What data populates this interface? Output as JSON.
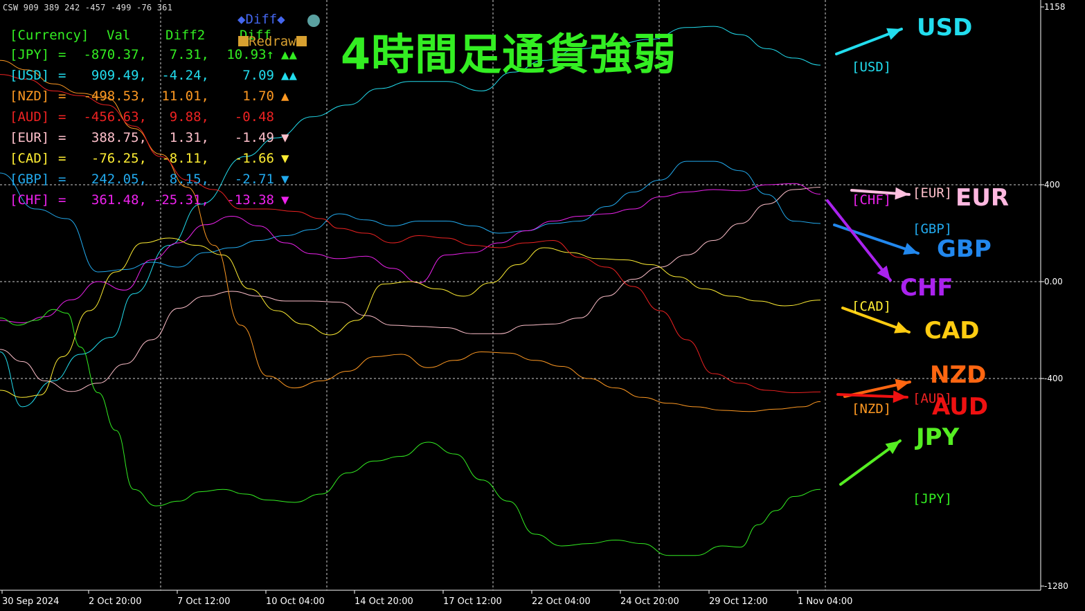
{
  "header": {
    "indicator_line": "CSW 909 389 242 -457 -499 -76 361"
  },
  "panel": {
    "col_headers": [
      "[Currency]",
      "Val",
      "Diff2",
      "Diff"
    ],
    "diff_button": "◆Diff◆",
    "redraw_button": "Redraw",
    "rows": [
      {
        "label": "[JPY]",
        "eq": "=",
        "val": "-870.37,",
        "diff2": "7.31,",
        "diff": "10.93↑",
        "arrows": "▲▲",
        "color": "#33ee22"
      },
      {
        "label": "[USD]",
        "eq": "=",
        "val": "909.49,",
        "diff2": "-4.24,",
        "diff": "7.09",
        "arrows": "▲▲",
        "color": "#22ddee"
      },
      {
        "label": "[NZD]",
        "eq": "=",
        "val": "-498.53,",
        "diff2": "11.01,",
        "diff": "1.70",
        "arrows": "▲",
        "color": "#ff9922"
      },
      {
        "label": "[AUD]",
        "eq": "=",
        "val": "-456.63,",
        "diff2": "9.88,",
        "diff": "-0.48",
        "arrows": "",
        "color": "#ee2222"
      },
      {
        "label": "[EUR]",
        "eq": "=",
        "val": "388.75,",
        "diff2": "1.31,",
        "diff": "-1.49",
        "arrows": "▼",
        "color": "#ffc0cb"
      },
      {
        "label": "[CAD]",
        "eq": "=",
        "val": "-76.25,",
        "diff2": "-8.11,",
        "diff": "-1.66",
        "arrows": "▼",
        "color": "#ffee33"
      },
      {
        "label": "[GBP]",
        "eq": "=",
        "val": "242.05,",
        "diff2": "8.15,",
        "diff": "-2.71",
        "arrows": "▼",
        "color": "#22aaee"
      },
      {
        "label": "[CHF]",
        "eq": "=",
        "val": "361.48,",
        "diff2": "-25.31,",
        "diff": "-13.38",
        "arrows": "▼",
        "color": "#ee22ee"
      }
    ]
  },
  "title": "4時間足通貨強弱",
  "series_labels": [
    {
      "tag": "[USD]",
      "color": "#22ddee"
    },
    {
      "tag": "[EUR]",
      "color": "#ffc0cb"
    },
    {
      "tag": "[CHF]",
      "color": "#ee22ee"
    },
    {
      "tag": "[GBP]",
      "color": "#22aaee"
    },
    {
      "tag": "[CAD]",
      "color": "#ffee33"
    },
    {
      "tag": "[NZD]",
      "color": "#ff9922"
    },
    {
      "tag": "[AUD]",
      "color": "#ee2222"
    },
    {
      "tag": "[JPY]",
      "color": "#33ee22"
    }
  ],
  "annotations": [
    {
      "text": "USD",
      "color": "#22ddee"
    },
    {
      "text": "EUR",
      "color": "#ffb8e0"
    },
    {
      "text": "GBP",
      "color": "#2288ee"
    },
    {
      "text": "CHF",
      "color": "#aa22ee"
    },
    {
      "text": "CAD",
      "color": "#ffcc11"
    },
    {
      "text": "NZD",
      "color": "#ff6611"
    },
    {
      "text": "AUD",
      "color": "#ee1111"
    },
    {
      "text": "JPY",
      "color": "#55ee22"
    }
  ],
  "chart_data": {
    "type": "line",
    "y_axis": {
      "ticks": [
        1158,
        400,
        0,
        -400,
        -1280
      ],
      "tick_labels": [
        "1158",
        "400",
        "0.00",
        "-400",
        "-1280"
      ],
      "ylim": [
        -1280,
        1158
      ]
    },
    "x_tick_labels": [
      "30 Sep 2024",
      "2 Oct 20:00",
      "7 Oct 12:00",
      "10 Oct 04:00",
      "14 Oct 20:00",
      "17 Oct 12:00",
      "22 Oct 04:00",
      "24 Oct 20:00",
      "29 Oct 12:00",
      "1 Nov 04:00"
    ],
    "x_range": [
      0,
      184
    ],
    "grid": true,
    "series": [
      {
        "name": "USD",
        "color": "#22ddee",
        "x": [
          0,
          5,
          12,
          18,
          25,
          30,
          38,
          45,
          55,
          62,
          70,
          78,
          85,
          92,
          100,
          108,
          115,
          122,
          130,
          138,
          146,
          154,
          160,
          166,
          172,
          178,
          184
        ],
        "values": [
          -290,
          -520,
          -410,
          -300,
          -230,
          -50,
          150,
          320,
          520,
          600,
          690,
          740,
          810,
          840,
          840,
          800,
          880,
          930,
          980,
          1000,
          1020,
          1070,
          1075,
          1040,
          980,
          940,
          910
        ]
      },
      {
        "name": "EUR",
        "color": "#ffc0cb",
        "x": [
          0,
          5,
          10,
          16,
          22,
          28,
          34,
          40,
          46,
          52,
          58,
          64,
          70,
          76,
          82,
          88,
          94,
          100,
          106,
          112,
          118,
          124,
          130,
          136,
          142,
          148,
          154,
          160,
          166,
          172,
          178,
          184
        ],
        "values": [
          -280,
          -330,
          -410,
          -455,
          -420,
          -340,
          -240,
          -110,
          -60,
          -40,
          -60,
          -80,
          -80,
          -85,
          -140,
          -180,
          -185,
          -190,
          -215,
          -215,
          -180,
          -175,
          -150,
          -60,
          10,
          60,
          110,
          170,
          240,
          320,
          380,
          390
        ]
      },
      {
        "name": "GBP",
        "color": "#22aaee",
        "x": [
          0,
          8,
          15,
          22,
          28,
          34,
          40,
          46,
          52,
          58,
          64,
          70,
          76,
          82,
          88,
          94,
          100,
          106,
          112,
          118,
          124,
          130,
          136,
          142,
          148,
          154,
          160,
          166,
          172,
          178,
          184
        ],
        "values": [
          450,
          300,
          260,
          40,
          50,
          80,
          60,
          120,
          140,
          170,
          190,
          215,
          280,
          255,
          230,
          250,
          250,
          230,
          200,
          210,
          240,
          250,
          310,
          370,
          420,
          500,
          500,
          460,
          360,
          250,
          240
        ]
      },
      {
        "name": "CHF",
        "color": "#ee22ee",
        "x": [
          0,
          5,
          10,
          16,
          22,
          28,
          34,
          40,
          46,
          52,
          58,
          64,
          70,
          76,
          82,
          88,
          94,
          100,
          106,
          112,
          118,
          124,
          130,
          136,
          142,
          148,
          154,
          160,
          166,
          172,
          178,
          184
        ],
        "values": [
          -160,
          -170,
          -145,
          -75,
          0,
          -35,
          90,
          160,
          235,
          270,
          230,
          160,
          115,
          95,
          105,
          55,
          -5,
          110,
          120,
          160,
          210,
          250,
          270,
          280,
          300,
          350,
          370,
          380,
          375,
          400,
          405,
          361
        ]
      },
      {
        "name": "CAD",
        "color": "#ffee33",
        "x": [
          0,
          5,
          9,
          14,
          20,
          26,
          32,
          38,
          44,
          50,
          56,
          62,
          68,
          74,
          80,
          86,
          92,
          98,
          104,
          110,
          116,
          122,
          128,
          134,
          140,
          146,
          152,
          158,
          164,
          170,
          176,
          184
        ],
        "values": [
          -450,
          -480,
          -470,
          -310,
          -120,
          40,
          160,
          180,
          150,
          110,
          -30,
          -120,
          -175,
          -220,
          -160,
          -10,
          0,
          -30,
          -60,
          -5,
          70,
          140,
          120,
          95,
          90,
          70,
          20,
          -30,
          -60,
          -80,
          -100,
          -76
        ]
      },
      {
        "name": "NZD",
        "color": "#ff9922",
        "x": [
          0,
          6,
          12,
          18,
          24,
          30,
          36,
          42,
          48,
          54,
          60,
          66,
          72,
          78,
          84,
          90,
          96,
          102,
          108,
          114,
          120,
          126,
          132,
          138,
          144,
          150,
          156,
          162,
          168,
          174,
          180,
          184
        ],
        "values": [
          930,
          890,
          830,
          790,
          770,
          640,
          530,
          390,
          150,
          -180,
          -390,
          -440,
          -410,
          -370,
          -310,
          -300,
          -355,
          -325,
          -290,
          -295,
          -325,
          -350,
          -400,
          -440,
          -480,
          -505,
          -520,
          -535,
          -540,
          -530,
          -520,
          -498
        ]
      },
      {
        "name": "AUD",
        "color": "#ee2222",
        "x": [
          0,
          6,
          12,
          18,
          24,
          30,
          36,
          42,
          48,
          54,
          60,
          66,
          72,
          76,
          82,
          88,
          94,
          100,
          106,
          112,
          118,
          124,
          130,
          136,
          142,
          148,
          154,
          160,
          166,
          172,
          178,
          184
        ],
        "values": [
          870,
          850,
          800,
          780,
          740,
          650,
          520,
          420,
          380,
          300,
          300,
          290,
          260,
          220,
          200,
          160,
          190,
          180,
          150,
          140,
          160,
          170,
          100,
          60,
          -20,
          -120,
          -240,
          -380,
          -420,
          -450,
          -460,
          -457
        ]
      },
      {
        "name": "JPY",
        "color": "#33ee22",
        "x": [
          0,
          4,
          8,
          12,
          15,
          18,
          22,
          26,
          30,
          35,
          40,
          45,
          50,
          55,
          60,
          66,
          72,
          78,
          84,
          90,
          96,
          102,
          108,
          114,
          120,
          126,
          132,
          138,
          144,
          150,
          156,
          162,
          166,
          170,
          174,
          178,
          184
        ],
        "values": [
          -150,
          -180,
          -160,
          -115,
          -130,
          -270,
          -460,
          -620,
          -870,
          -940,
          -920,
          -880,
          -870,
          -890,
          -915,
          -925,
          -890,
          -800,
          -750,
          -730,
          -670,
          -720,
          -830,
          -920,
          -1060,
          -1110,
          -1100,
          -1085,
          -1100,
          -1150,
          -1150,
          -1110,
          -1115,
          -1020,
          -960,
          -900,
          -870
        ]
      }
    ]
  }
}
